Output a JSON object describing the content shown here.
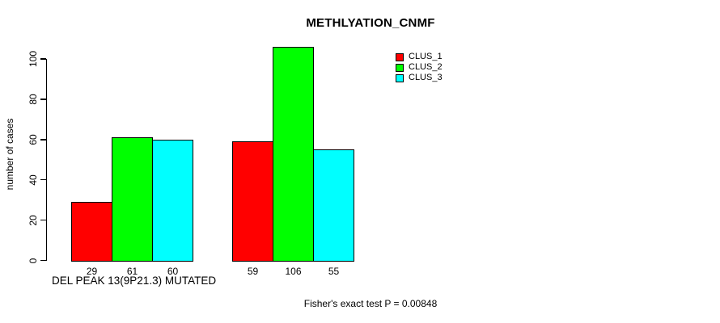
{
  "title": "METHLYATION_CNMF",
  "footnote": "Fisher's exact test P = 0.00848",
  "colors": {
    "clus_1": "#ff0000",
    "clus_2": "#00ff00",
    "clus_3": "#00ffff",
    "axis": "#000000",
    "bar_border": "#000000",
    "background": "#ffffff"
  },
  "legend": {
    "entries": [
      {
        "label": "CLUS_1",
        "color": "#ff0000"
      },
      {
        "label": "CLUS_2",
        "color": "#00ff00"
      },
      {
        "label": "CLUS_3",
        "color": "#00ffff"
      }
    ]
  },
  "chart_data": {
    "type": "bar",
    "title": "METHLYATION_CNMF",
    "xlabel": "DEL PEAK 13(9P21.3) MUTATED",
    "ylabel": "number of cases",
    "ylim": [
      0,
      110
    ],
    "yticks": [
      0,
      20,
      40,
      60,
      80,
      100
    ],
    "grid": false,
    "legend_position": "top-right-inside",
    "group_count": 2,
    "series": [
      {
        "name": "CLUS_1",
        "color": "#ff0000",
        "values": [
          29,
          59
        ]
      },
      {
        "name": "CLUS_2",
        "color": "#00ff00",
        "values": [
          61,
          106
        ]
      },
      {
        "name": "CLUS_3",
        "color": "#00ffff",
        "values": [
          60,
          55
        ]
      }
    ],
    "bar_value_labels": [
      [
        29,
        61,
        60
      ],
      [
        59,
        106,
        55
      ]
    ]
  }
}
